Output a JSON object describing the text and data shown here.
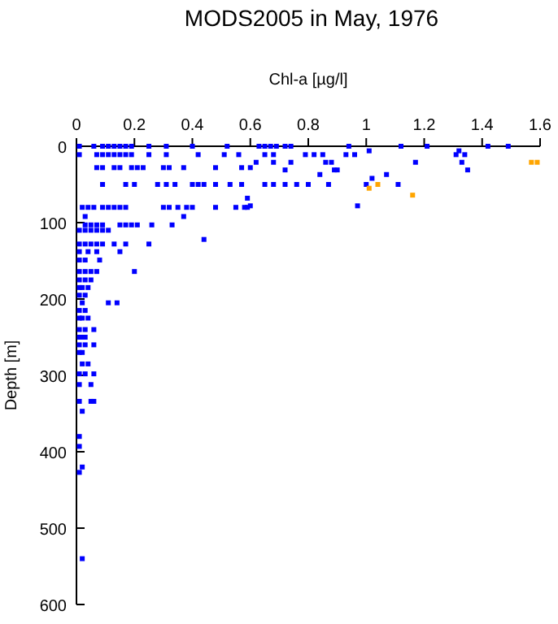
{
  "chart_data": {
    "type": "scatter",
    "title": "MODS2005 in May, 1976",
    "xlabel": "Chl-a [µg/l]",
    "ylabel": "Depth [m]",
    "xlim": [
      0,
      1.6
    ],
    "xticks": [
      0,
      0.2,
      0.4,
      0.6,
      0.8,
      1,
      1.2,
      1.4,
      1.6
    ],
    "ylim": [
      600,
      0
    ],
    "yticks": [
      0,
      100,
      200,
      300,
      400,
      500,
      600
    ],
    "grid": false,
    "marker": "square",
    "series": [
      {
        "color": "#0000ff",
        "x": [
          0.01,
          0.06,
          0.09,
          0.11,
          0.13,
          0.15,
          0.17,
          0.19,
          0.25,
          0.31,
          0.4,
          0.52,
          0.63,
          0.65,
          0.67,
          0.69,
          0.72,
          0.74,
          0.94,
          1.12,
          1.21,
          1.42,
          1.49,
          0.01,
          0.07,
          0.09,
          0.11,
          0.13,
          0.15,
          0.17,
          0.19,
          0.25,
          0.31,
          0.42,
          0.51,
          0.56,
          0.65,
          0.68,
          0.79,
          0.82,
          0.85,
          0.93,
          0.96,
          1.31,
          1.34,
          1.01,
          1.32,
          0.07,
          0.09,
          0.13,
          0.15,
          0.19,
          0.21,
          0.23,
          0.3,
          0.32,
          0.37,
          0.48,
          0.57,
          0.6,
          0.62,
          0.68,
          0.74,
          0.86,
          0.88,
          1.17,
          1.33,
          0.72,
          0.89,
          0.9,
          1.35,
          0.84,
          1.07,
          1.02,
          0.09,
          0.17,
          0.2,
          0.28,
          0.31,
          0.34,
          0.4,
          0.42,
          0.44,
          0.48,
          0.53,
          0.57,
          0.65,
          0.68,
          0.72,
          0.76,
          0.8,
          0.87,
          1.0,
          1.11,
          0.59,
          0.6,
          0.97,
          0.02,
          0.04,
          0.06,
          0.09,
          0.11,
          0.13,
          0.15,
          0.17,
          0.3,
          0.32,
          0.35,
          0.38,
          0.4,
          0.48,
          0.55,
          0.58,
          0.59,
          0.03,
          0.37,
          0.03,
          0.05,
          0.07,
          0.09,
          0.15,
          0.17,
          0.19,
          0.21,
          0.26,
          0.33,
          0.01,
          0.03,
          0.05,
          0.07,
          0.09,
          0.11,
          0.01,
          0.03,
          0.05,
          0.07,
          0.09,
          0.13,
          0.17,
          0.25,
          0.44,
          0.01,
          0.04,
          0.07,
          0.15,
          0.01,
          0.03,
          0.08,
          0.01,
          0.03,
          0.05,
          0.07,
          0.2,
          0.01,
          0.03,
          0.05,
          0.01,
          0.02,
          0.04,
          0.01,
          0.03,
          0.02,
          0.11,
          0.14,
          0.01,
          0.03,
          0.01,
          0.02,
          0.04,
          0.01,
          0.03,
          0.06,
          0.01,
          0.02,
          0.03,
          0.01,
          0.03,
          0.06,
          0.01,
          0.02,
          0.02,
          0.04,
          0.01,
          0.03,
          0.06,
          0.01,
          0.05,
          0.01,
          0.05,
          0.06,
          0.02,
          0.01,
          0.01,
          0.02,
          0.01,
          0.02
        ],
        "values": [
          0,
          0,
          0,
          0,
          0,
          0,
          0,
          0,
          0,
          0,
          0,
          0,
          0,
          0,
          0,
          0,
          0,
          0,
          0,
          0,
          0,
          0,
          0,
          11,
          11,
          11,
          11,
          11,
          11,
          11,
          11,
          11,
          11,
          11,
          11,
          11,
          11,
          11,
          11,
          11,
          11,
          11,
          11,
          11,
          11,
          6,
          6,
          28,
          28,
          28,
          28,
          28,
          28,
          28,
          28,
          28,
          28,
          28,
          28,
          28,
          21,
          21,
          21,
          21,
          21,
          21,
          21,
          31,
          31,
          31,
          31,
          37,
          37,
          42,
          50,
          50,
          50,
          50,
          50,
          50,
          50,
          50,
          50,
          50,
          50,
          50,
          50,
          50,
          50,
          50,
          50,
          50,
          50,
          50,
          68,
          78,
          78,
          80,
          80,
          80,
          80,
          80,
          80,
          80,
          80,
          80,
          80,
          80,
          80,
          80,
          80,
          80,
          80,
          80,
          92,
          92,
          103,
          103,
          103,
          103,
          103,
          103,
          103,
          103,
          103,
          103,
          110,
          110,
          110,
          110,
          110,
          110,
          128,
          128,
          128,
          128,
          128,
          128,
          128,
          128,
          122,
          138,
          138,
          138,
          138,
          149,
          149,
          149,
          164,
          164,
          164,
          164,
          164,
          175,
          175,
          175,
          185,
          185,
          185,
          195,
          195,
          205,
          205,
          205,
          215,
          215,
          225,
          225,
          225,
          240,
          240,
          240,
          250,
          250,
          250,
          260,
          260,
          260,
          270,
          270,
          285,
          285,
          298,
          298,
          298,
          312,
          312,
          334,
          334,
          334,
          347,
          380,
          393,
          420,
          427,
          540
        ]
      },
      {
        "color": "#ffa500",
        "x": [
          1.57,
          1.59,
          1.04,
          1.01,
          1.16
        ],
        "values": [
          21,
          21,
          50,
          55,
          64
        ]
      }
    ]
  }
}
